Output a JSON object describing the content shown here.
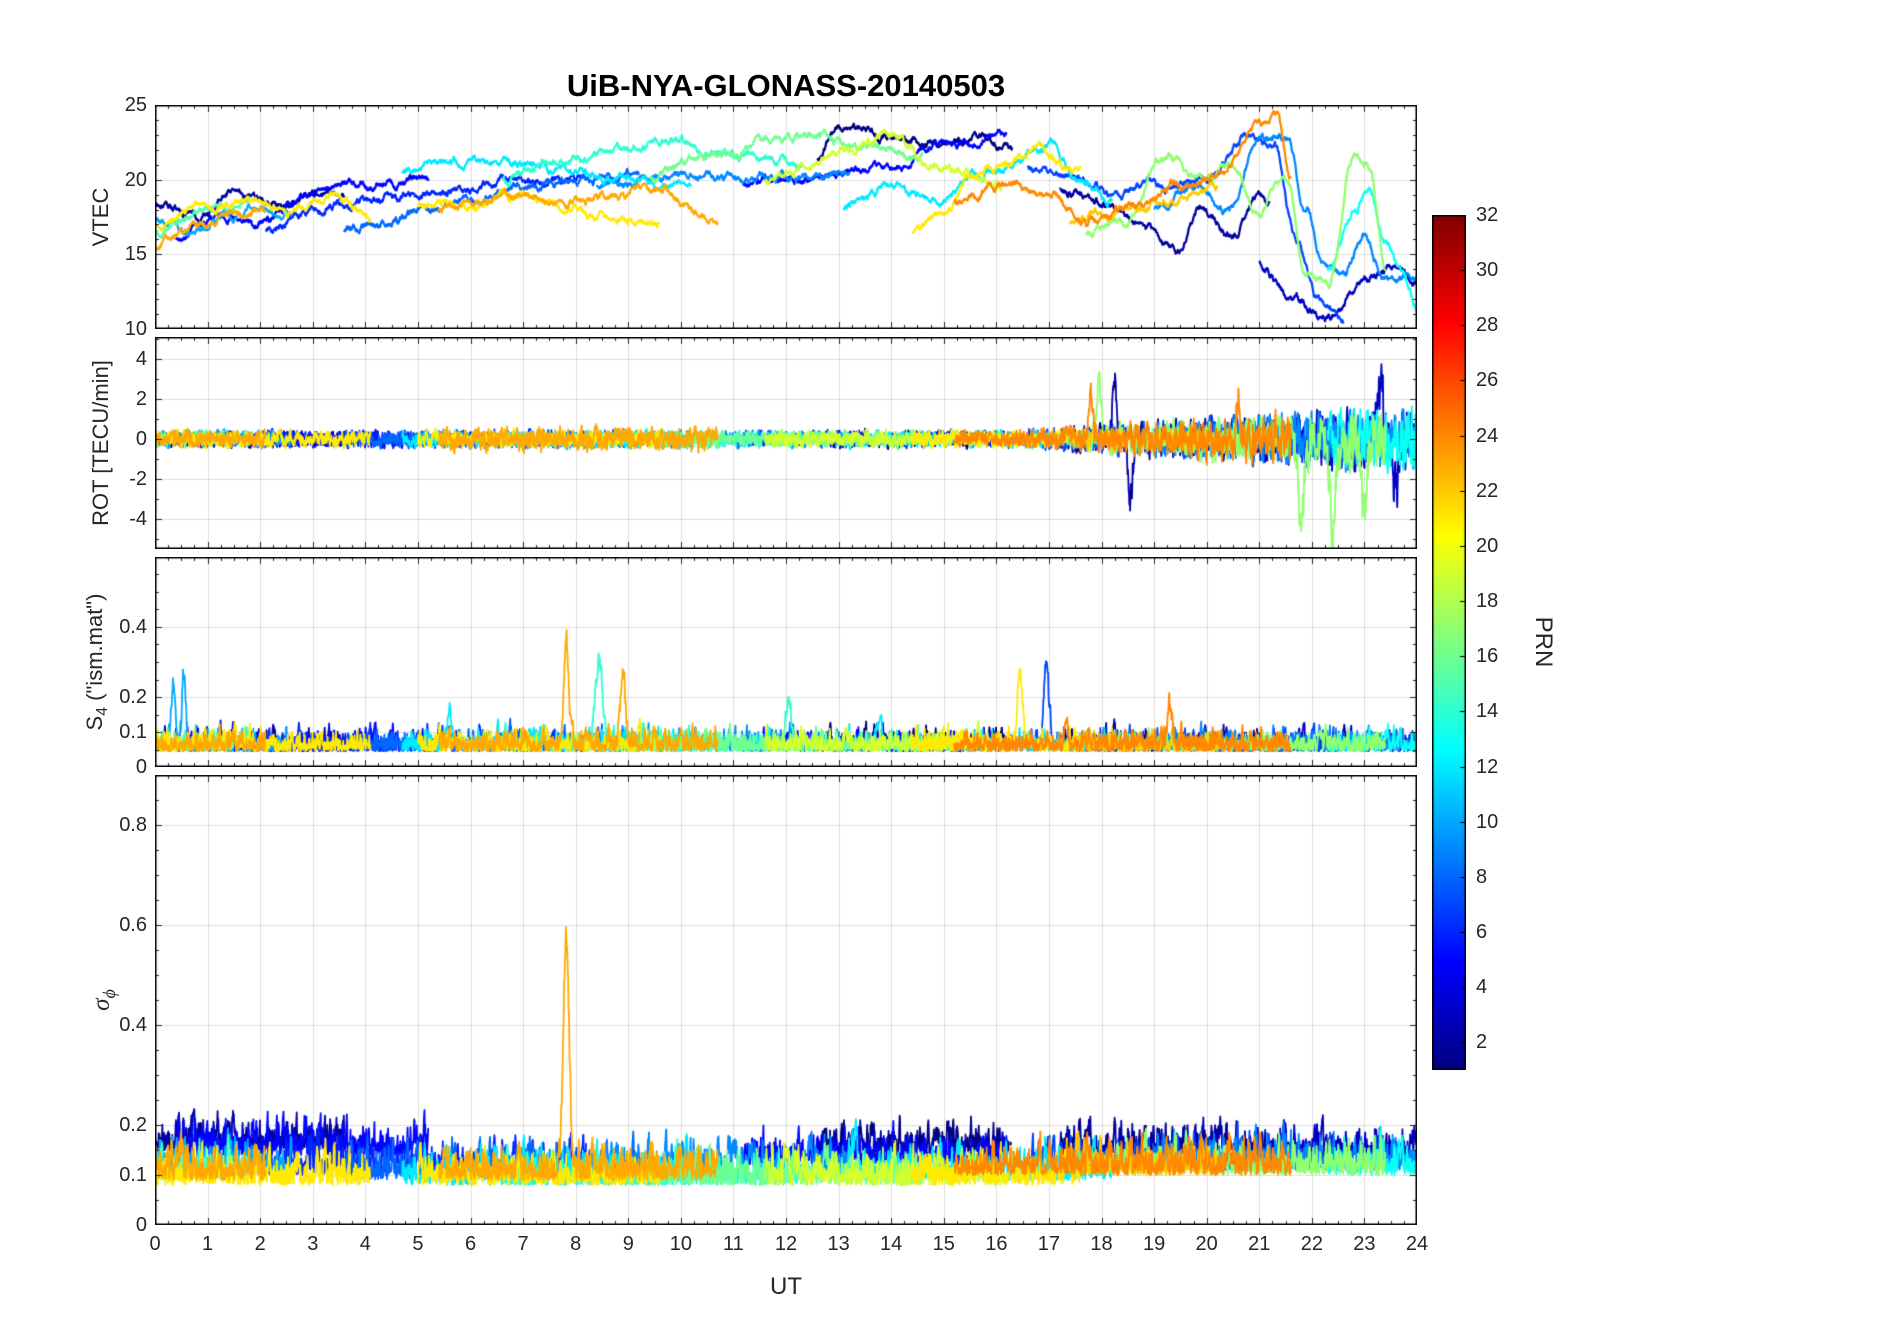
{
  "chart_data": {
    "type": "line",
    "title": "UiB-NYA-GLONASS-20140503",
    "xlabel": "UT",
    "x_range": [
      0,
      24
    ],
    "x_ticks": [
      0,
      1,
      2,
      3,
      4,
      5,
      6,
      7,
      8,
      9,
      10,
      11,
      12,
      13,
      14,
      15,
      16,
      17,
      18,
      19,
      20,
      21,
      22,
      23,
      24
    ],
    "grid": true,
    "colorbar": {
      "label": "PRN",
      "cmin": 1,
      "cmax": 32,
      "ticks": [
        32,
        30,
        28,
        26,
        24,
        22,
        20,
        18,
        16,
        14,
        12,
        10,
        8,
        6,
        4,
        2
      ],
      "colormap": "jet"
    },
    "panels": [
      {
        "id": "vtec",
        "ylabel": "VTEC",
        "ylabel_parts": {
          "main": "VTEC",
          "sub": "",
          "rest": ""
        },
        "ylim": [
          10,
          25
        ],
        "yticks": [
          25,
          20,
          15,
          10
        ],
        "yminor": 1
      },
      {
        "id": "rot",
        "ylabel": "ROT [TECU/min]",
        "ylabel_parts": {
          "main": "ROT [TECU/min]",
          "sub": "",
          "rest": ""
        },
        "ylim": [
          -5.5,
          5.1
        ],
        "yticks": [
          4,
          2,
          0,
          -2,
          -4
        ],
        "yminor": 1
      },
      {
        "id": "s4",
        "ylabel": "S_4 (\"ism.mat\")",
        "ylabel_parts": {
          "main": "S",
          "sub": "4",
          "rest": " (\"ism.mat\")"
        },
        "ylim": [
          0,
          0.6
        ],
        "yticks": [
          0.4,
          0.2,
          0.1,
          0
        ],
        "yminor": 0.05
      },
      {
        "id": "sigma_phi",
        "ylabel": "sigma_phi",
        "ylabel_parts": {
          "main": "σ",
          "sub": "ϕ",
          "rest": ""
        },
        "ylim": [
          0,
          0.9
        ],
        "yticks": [
          0.8,
          0.6,
          0.4,
          0.2,
          0.1,
          0
        ],
        "yminor": 0.05
      }
    ],
    "passes": [
      {
        "prn": 1,
        "t": [
          12.6,
          16.3
        ],
        "vtec": [
          [
            12.6,
            21.5
          ],
          [
            13.0,
            23.6
          ],
          [
            13.6,
            23.2
          ],
          [
            14.2,
            22.6
          ],
          [
            15.0,
            22.3
          ],
          [
            15.7,
            22.8
          ],
          [
            16.3,
            22.2
          ]
        ],
        "sigma_base": 0.16
      },
      {
        "prn": 2,
        "t": [
          0,
          3.6
        ],
        "vtec": [
          [
            0,
            18.4
          ],
          [
            0.8,
            17.5
          ],
          [
            1.5,
            19.4
          ],
          [
            2.3,
            18.1
          ],
          [
            3.0,
            19.0
          ],
          [
            3.6,
            19.2
          ]
        ],
        "sigma_base": 0.17
      },
      {
        "prn": 2,
        "t": [
          17.2,
          21.2
        ],
        "vtec": [
          [
            17.2,
            19.4
          ],
          [
            18.0,
            18.4
          ],
          [
            18.8,
            16.6
          ],
          [
            19.4,
            15.2
          ],
          [
            19.9,
            18.0
          ],
          [
            20.5,
            16.2
          ],
          [
            21.0,
            19.0
          ],
          [
            21.2,
            18.2
          ]
        ],
        "rot_late": true,
        "rot_spikes": [
          [
            18.25,
            3.2,
            0.04
          ],
          [
            18.55,
            -3.0,
            0.04
          ]
        ],
        "sigma_base": 0.16
      },
      {
        "prn": 3,
        "t": [
          21.0,
          24
        ],
        "vtec": [
          [
            21.0,
            14.5
          ],
          [
            21.6,
            12.0
          ],
          [
            22.3,
            10.6
          ],
          [
            23.0,
            13.4
          ],
          [
            23.5,
            14.2
          ],
          [
            24,
            13.0
          ]
        ],
        "rot_late": true,
        "rot_spikes": [
          [
            23.3,
            3.0,
            0.05
          ],
          [
            23.6,
            -2.6,
            0.05
          ]
        ],
        "sigma_base": 0.15
      },
      {
        "prn": 5,
        "t": [
          0.4,
          5.2
        ],
        "vtec": [
          [
            0.4,
            16.1
          ],
          [
            1.2,
            17.6
          ],
          [
            2.0,
            17.1
          ],
          [
            3.0,
            19.0
          ],
          [
            4.0,
            19.6
          ],
          [
            5.2,
            20.0
          ]
        ],
        "sigma_base": 0.16
      },
      {
        "prn": 5,
        "t": [
          11.2,
          16.2
        ],
        "vtec": [
          [
            11.2,
            19.6
          ],
          [
            12.0,
            20.0
          ],
          [
            13.0,
            20.4
          ],
          [
            14.0,
            21.0
          ],
          [
            15.0,
            22.4
          ],
          [
            16.2,
            23.0
          ]
        ],
        "sigma_base": 0.14
      },
      {
        "prn": 6,
        "t": [
          2.1,
          8.2
        ],
        "vtec": [
          [
            2.1,
            16.6
          ],
          [
            3.0,
            18.0
          ],
          [
            4.0,
            18.6
          ],
          [
            5.0,
            19.0
          ],
          [
            6.2,
            19.5
          ],
          [
            7.2,
            20.0
          ],
          [
            8.2,
            20.3
          ]
        ],
        "sigma_base": 0.12
      },
      {
        "prn": 7,
        "t": [
          16.6,
          22.6
        ],
        "vtec": [
          [
            16.6,
            21.0
          ],
          [
            17.4,
            20.4
          ],
          [
            18.2,
            19.0
          ],
          [
            19.0,
            19.5
          ],
          [
            20.0,
            20.0
          ],
          [
            20.8,
            23.0
          ],
          [
            21.3,
            22.0
          ],
          [
            21.7,
            16.0
          ],
          [
            22.1,
            12.0
          ],
          [
            22.6,
            10.5
          ]
        ],
        "rot_late": true,
        "s4_spikes": [
          [
            16.95,
            0.25,
            0.045
          ]
        ],
        "sigma_base": 0.13
      },
      {
        "prn": 8,
        "t": [
          3.6,
          9.2
        ],
        "vtec": [
          [
            3.6,
            16.6
          ],
          [
            4.4,
            17.1
          ],
          [
            5.2,
            18.0
          ],
          [
            6.0,
            18.6
          ],
          [
            7.0,
            19.5
          ],
          [
            8.0,
            19.8
          ],
          [
            9.2,
            20.4
          ]
        ],
        "sigma_base": 0.11
      },
      {
        "prn": 9,
        "t": [
          8.4,
          13.2
        ],
        "vtec": [
          [
            8.4,
            19.5
          ],
          [
            9.2,
            20.0
          ],
          [
            10.0,
            20.2
          ],
          [
            11.0,
            20.0
          ],
          [
            12.0,
            20.3
          ],
          [
            13.2,
            20.5
          ]
        ],
        "sigma_base": 0.12
      },
      {
        "prn": 9,
        "t": [
          19.0,
          24
        ],
        "vtec": [
          [
            19.0,
            18.0
          ],
          [
            19.8,
            19.5
          ],
          [
            20.4,
            18.0
          ],
          [
            21.0,
            22.4
          ],
          [
            21.5,
            23.0
          ],
          [
            21.9,
            18.0
          ],
          [
            22.2,
            15.0
          ],
          [
            22.6,
            13.5
          ],
          [
            23.0,
            16.0
          ],
          [
            23.4,
            13.8
          ],
          [
            24,
            13.4
          ]
        ],
        "rot_late": true,
        "sigma_base": 0.13
      },
      {
        "prn": 10,
        "t": [
          0,
          2.6
        ],
        "vtec": [
          [
            0,
            17.5
          ],
          [
            0.7,
            16.6
          ],
          [
            1.4,
            17.8
          ],
          [
            2.0,
            18.0
          ],
          [
            2.6,
            17.6
          ]
        ],
        "s4_spikes": [
          [
            0.35,
            0.18,
            0.04
          ],
          [
            0.55,
            0.21,
            0.035
          ]
        ],
        "sigma_base": 0.12
      },
      {
        "prn": 12,
        "t": [
          4.7,
          10.2
        ],
        "vtec": [
          [
            4.7,
            20.5
          ],
          [
            5.5,
            21.0
          ],
          [
            6.3,
            21.3
          ],
          [
            7.0,
            21.0
          ],
          [
            8.0,
            20.6
          ],
          [
            9.0,
            20.0
          ],
          [
            10.2,
            19.5
          ]
        ],
        "s4_spikes": [
          [
            5.6,
            0.1,
            0.04
          ]
        ],
        "sigma_base": 0.1
      },
      {
        "prn": 12,
        "t": [
          13.1,
          18.2
        ],
        "vtec": [
          [
            13.1,
            18.0
          ],
          [
            14.0,
            19.5
          ],
          [
            14.8,
            18.5
          ],
          [
            15.6,
            20.5
          ],
          [
            16.3,
            21.0
          ],
          [
            17.0,
            22.4
          ],
          [
            17.6,
            20.0
          ],
          [
            18.2,
            18.5
          ]
        ],
        "sigma_base": 0.11
      },
      {
        "prn": 13,
        "t": [
          22.3,
          24
        ],
        "vtec": [
          [
            22.3,
            14.0
          ],
          [
            22.8,
            18.0
          ],
          [
            23.1,
            19.5
          ],
          [
            23.4,
            16.0
          ],
          [
            23.7,
            14.0
          ],
          [
            24,
            11.5
          ]
        ],
        "rot_late": true,
        "sigma_base": 0.12
      },
      {
        "prn": 14,
        "t": [
          6.6,
          12.3
        ],
        "vtec": [
          [
            6.6,
            20.0
          ],
          [
            7.4,
            21.0
          ],
          [
            8.2,
            21.5
          ],
          [
            9.0,
            22.0
          ],
          [
            9.8,
            22.8
          ],
          [
            10.6,
            22.0
          ],
          [
            11.4,
            21.5
          ],
          [
            12.3,
            21.0
          ]
        ],
        "s4_spikes": [
          [
            8.45,
            0.24,
            0.06
          ],
          [
            12.05,
            0.14,
            0.04
          ]
        ],
        "sigma_base": 0.1
      },
      {
        "prn": 15,
        "t": [
          0,
          1.8
        ],
        "vtec": [
          [
            0,
            16.5
          ],
          [
            0.6,
            17.5
          ],
          [
            1.2,
            18.0
          ],
          [
            1.8,
            18.3
          ]
        ],
        "sigma_base": 0.11
      },
      {
        "prn": 16,
        "t": [
          9.4,
          14.6
        ],
        "vtec": [
          [
            9.4,
            20.0
          ],
          [
            10.2,
            21.5
          ],
          [
            11.0,
            22.0
          ],
          [
            11.8,
            22.8
          ],
          [
            12.6,
            23.0
          ],
          [
            13.4,
            22.1
          ],
          [
            14.6,
            21.5
          ]
        ],
        "sigma_base": 0.1
      },
      {
        "prn": 17,
        "t": [
          17.7,
          23.4
        ],
        "vtec": [
          [
            17.7,
            16.5
          ],
          [
            18.4,
            17.0
          ],
          [
            19.2,
            21.5
          ],
          [
            19.8,
            20.0
          ],
          [
            20.4,
            21.0
          ],
          [
            21.0,
            18.0
          ],
          [
            21.5,
            20.5
          ],
          [
            21.9,
            14.0
          ],
          [
            22.3,
            13.0
          ],
          [
            22.8,
            21.5
          ],
          [
            23.1,
            21.0
          ],
          [
            23.4,
            14.0
          ]
        ],
        "rot_late": true,
        "rot_spikes": [
          [
            17.95,
            3.2,
            0.04
          ],
          [
            21.8,
            -4.5,
            0.05
          ],
          [
            22.4,
            -5.2,
            0.05
          ],
          [
            23.0,
            -4.0,
            0.05
          ]
        ],
        "sigma_base": 0.12
      },
      {
        "prn": 19,
        "t": [
          11.6,
          16.1
        ],
        "vtec": [
          [
            11.6,
            20.0
          ],
          [
            12.4,
            21.0
          ],
          [
            13.2,
            22.0
          ],
          [
            14.0,
            23.0
          ],
          [
            14.8,
            21.0
          ],
          [
            16.1,
            19.5
          ]
        ],
        "sigma_base": 0.1
      },
      {
        "prn": 21,
        "t": [
          0,
          4.1
        ],
        "vtec": [
          [
            0,
            17.0
          ],
          [
            0.8,
            18.0
          ],
          [
            1.6,
            18.5
          ],
          [
            2.4,
            18.0
          ],
          [
            3.2,
            18.8
          ],
          [
            4.1,
            17.5
          ]
        ],
        "sigma_base": 0.1
      },
      {
        "prn": 21,
        "t": [
          5.0,
          9.6
        ],
        "vtec": [
          [
            5.0,
            18.5
          ],
          [
            5.8,
            18.0
          ],
          [
            6.6,
            19.0
          ],
          [
            7.4,
            18.5
          ],
          [
            8.4,
            17.5
          ],
          [
            9.6,
            17.0
          ]
        ],
        "sigma_base": 0.1
      },
      {
        "prn": 21,
        "t": [
          14.4,
          17.6
        ],
        "vtec": [
          [
            14.4,
            16.5
          ],
          [
            15.0,
            18.0
          ],
          [
            15.6,
            20.5
          ],
          [
            16.2,
            21.0
          ],
          [
            16.8,
            22.0
          ],
          [
            17.6,
            20.5
          ]
        ],
        "s4_spikes": [
          [
            16.45,
            0.22,
            0.045
          ]
        ],
        "sigma_base": 0.1
      },
      {
        "prn": 23,
        "t": [
          0,
          2.1
        ],
        "vtec": [
          [
            0,
            15.5
          ],
          [
            0.5,
            16.5
          ],
          [
            1.0,
            17.0
          ],
          [
            1.6,
            18.0
          ],
          [
            2.1,
            18.2
          ]
        ],
        "sigma_base": 0.11
      },
      {
        "prn": 23,
        "t": [
          5.4,
          10.7
        ],
        "vtec": [
          [
            5.4,
            18.0
          ],
          [
            6.2,
            18.5
          ],
          [
            7.0,
            19.0
          ],
          [
            7.8,
            18.5
          ],
          [
            8.6,
            19.0
          ],
          [
            9.6,
            19.3
          ],
          [
            10.7,
            17.0
          ]
        ],
        "rot_amp": 0.85,
        "s4_spikes": [
          [
            7.82,
            0.3,
            0.045
          ],
          [
            8.9,
            0.21,
            0.045
          ]
        ],
        "sigma_spikes": [
          [
            7.82,
            0.47,
            0.055
          ]
        ],
        "sigma_base": 0.11
      },
      {
        "prn": 24,
        "t": [
          15.2,
          21.6
        ],
        "vtec": [
          [
            15.2,
            18.5
          ],
          [
            16.0,
            19.5
          ],
          [
            17.0,
            19.0
          ],
          [
            17.8,
            17.2
          ],
          [
            18.6,
            18.0
          ],
          [
            19.4,
            19.5
          ],
          [
            20.2,
            20.5
          ],
          [
            21.0,
            23.5
          ],
          [
            21.3,
            24.5
          ],
          [
            21.6,
            20.0
          ]
        ],
        "rot_late": true,
        "rot_spikes": [
          [
            17.8,
            2.3,
            0.04
          ],
          [
            20.6,
            2.0,
            0.04
          ]
        ],
        "s4_spikes": [
          [
            19.3,
            0.11,
            0.045
          ]
        ],
        "sigma_base": 0.12
      },
      {
        "prn": 22,
        "t": [
          17.4,
          20.2
        ],
        "vtec": [
          [
            17.4,
            17.0
          ],
          [
            18.0,
            17.5
          ],
          [
            18.6,
            18.0
          ],
          [
            19.2,
            18.5
          ],
          [
            20.2,
            19.5
          ]
        ],
        "rot_amp": 0.8,
        "sigma_base": 0.12
      }
    ]
  }
}
